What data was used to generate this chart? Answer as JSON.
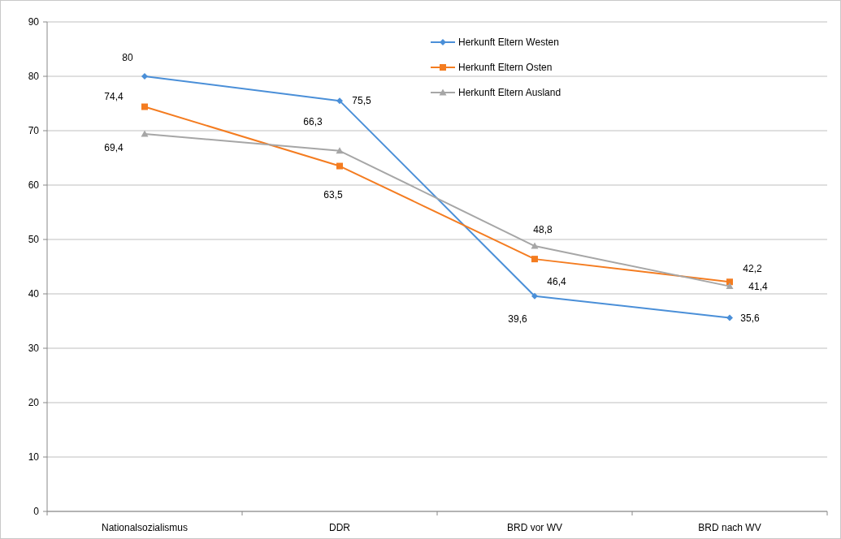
{
  "chart_data": {
    "type": "line",
    "categories": [
      "Nationalsozialismus",
      "DDR",
      "BRD vor WV",
      "BRD nach WV"
    ],
    "series": [
      {
        "name": "Herkunft Eltern Westen",
        "color": "#4a8fd8",
        "marker": "diamond",
        "values": [
          80,
          75.5,
          39.6,
          35.6
        ],
        "value_labels": [
          "80",
          "75,5",
          "39,6",
          "35,6"
        ]
      },
      {
        "name": "Herkunft Eltern Osten",
        "color": "#f47c20",
        "marker": "square",
        "values": [
          74.4,
          63.5,
          46.4,
          42.2
        ],
        "value_labels": [
          "74,4",
          "63,5",
          "46,4",
          "42,2"
        ]
      },
      {
        "name": "Herkunft Eltern Ausland",
        "color": "#a6a6a6",
        "marker": "triangle",
        "values": [
          69.4,
          66.3,
          48.8,
          41.4
        ],
        "value_labels": [
          "69,4",
          "66,3",
          "48,8",
          "41,4"
        ]
      }
    ],
    "ylim": [
      0,
      90
    ],
    "yticks": [
      0,
      10,
      20,
      30,
      40,
      50,
      60,
      70,
      80,
      90
    ],
    "grid": "y",
    "legend": "top right",
    "line_style": "solid"
  }
}
